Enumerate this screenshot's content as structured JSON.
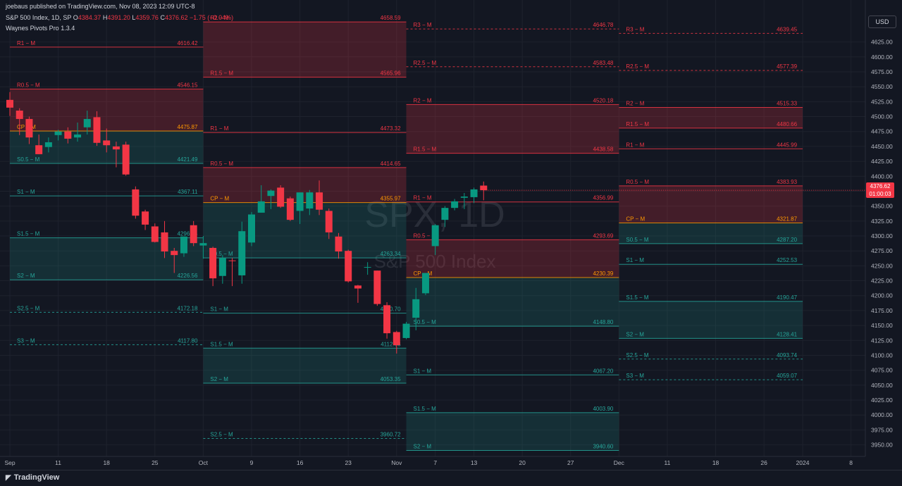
{
  "header": {
    "published": "joebaus published on TradingView.com, Nov 08, 2023 12:09 UTC-8",
    "symbol_line": "S&P 500 Index, 1D, SP",
    "ohlc": {
      "o_label": "O",
      "o": "4384.37",
      "h_label": "H",
      "h": "4391.20",
      "l_label": "L",
      "l": "4359.76",
      "c_label": "C",
      "c": "4376.62",
      "change": "−1.75 (−0.04%)"
    },
    "indicator": "Waynes Pivots Pro 1.3.4"
  },
  "currency_button": "USD",
  "last_price": {
    "price": "4376.62",
    "countdown": "01:00:03",
    "value": 4376.62
  },
  "watermark": {
    "ticker": "SPX, 1D",
    "name": "S&P 500 Index"
  },
  "footer": {
    "brand": "TradingView"
  },
  "colors": {
    "background": "#131722",
    "up": "#089981",
    "down": "#f23645",
    "resist": "#f23645",
    "support": "#26a69a",
    "pivot": "#ff9800",
    "grid": "#1e222d"
  },
  "chart_data": {
    "type": "candlestick",
    "title": "S&P 500 Index, 1D, SP",
    "ylim": [
      3930,
      4675
    ],
    "y_ticks": [
      3950,
      3975,
      4000,
      4025,
      4050,
      4075,
      4100,
      4125,
      4150,
      4175,
      4200,
      4225,
      4250,
      4275,
      4300,
      4325,
      4350,
      4375,
      4400,
      4425,
      4450,
      4475,
      4500,
      4525,
      4550,
      4575,
      4600,
      4625
    ],
    "x_ticks": [
      {
        "label": "Sep",
        "bar": 0
      },
      {
        "label": "11",
        "bar": 5
      },
      {
        "label": "18",
        "bar": 10
      },
      {
        "label": "25",
        "bar": 15
      },
      {
        "label": "Oct",
        "bar": 20
      },
      {
        "label": "9",
        "bar": 25
      },
      {
        "label": "16",
        "bar": 30
      },
      {
        "label": "23",
        "bar": 35
      },
      {
        "label": "Nov",
        "bar": 40
      },
      {
        "label": "7",
        "bar": 44
      },
      {
        "label": "13",
        "bar": 48
      },
      {
        "label": "20",
        "bar": 53
      },
      {
        "label": "27",
        "bar": 58
      },
      {
        "label": "Dec",
        "bar": 63
      },
      {
        "label": "11",
        "bar": 68
      },
      {
        "label": "18",
        "bar": 73
      },
      {
        "label": "26",
        "bar": 78
      },
      {
        "label": "2024",
        "bar": 82
      },
      {
        "label": "8",
        "bar": 87
      }
    ],
    "candles": [
      {
        "o": 4528,
        "h": 4541,
        "l": 4501,
        "c": 4515
      },
      {
        "o": 4510,
        "h": 4514,
        "l": 4469,
        "c": 4496
      },
      {
        "o": 4496,
        "h": 4500,
        "l": 4454,
        "c": 4465
      },
      {
        "o": 4452,
        "h": 4470,
        "l": 4437,
        "c": 4437
      },
      {
        "o": 4449,
        "h": 4465,
        "l": 4440,
        "c": 4457
      },
      {
        "o": 4469,
        "h": 4478,
        "l": 4460,
        "c": 4475
      },
      {
        "o": 4475,
        "h": 4482,
        "l": 4455,
        "c": 4463
      },
      {
        "o": 4465,
        "h": 4490,
        "l": 4458,
        "c": 4470
      },
      {
        "o": 4482,
        "h": 4510,
        "l": 4470,
        "c": 4496
      },
      {
        "o": 4499,
        "h": 4509,
        "l": 4451,
        "c": 4456
      },
      {
        "o": 4460,
        "h": 4480,
        "l": 4440,
        "c": 4452
      },
      {
        "o": 4450,
        "h": 4458,
        "l": 4415,
        "c": 4445
      },
      {
        "o": 4453,
        "h": 4458,
        "l": 4401,
        "c": 4403
      },
      {
        "o": 4378,
        "h": 4383,
        "l": 4329,
        "c": 4334
      },
      {
        "o": 4341,
        "h": 4344,
        "l": 4310,
        "c": 4319
      },
      {
        "o": 4316,
        "h": 4321,
        "l": 4289,
        "c": 4290
      },
      {
        "o": 4306,
        "h": 4325,
        "l": 4263,
        "c": 4274
      },
      {
        "o": 4275,
        "h": 4280,
        "l": 4238,
        "c": 4268
      },
      {
        "o": 4271,
        "h": 4299,
        "l": 4265,
        "c": 4299
      },
      {
        "o": 4318,
        "h": 4325,
        "l": 4283,
        "c": 4288
      },
      {
        "o": 4284,
        "h": 4300,
        "l": 4262,
        "c": 4288
      },
      {
        "o": 4280,
        "h": 4282,
        "l": 4216,
        "c": 4229
      },
      {
        "o": 4233,
        "h": 4268,
        "l": 4220,
        "c": 4263
      },
      {
        "o": 4259,
        "h": 4263,
        "l": 4216,
        "c": 4258
      },
      {
        "o": 4234,
        "h": 4324,
        "l": 4220,
        "c": 4308
      },
      {
        "o": 4289,
        "h": 4340,
        "l": 4283,
        "c": 4336
      },
      {
        "o": 4339,
        "h": 4385,
        "l": 4339,
        "c": 4358
      },
      {
        "o": 4367,
        "h": 4378,
        "l": 4345,
        "c": 4376
      },
      {
        "o": 4381,
        "h": 4385,
        "l": 4347,
        "c": 4349
      },
      {
        "o": 4363,
        "h": 4366,
        "l": 4325,
        "c": 4327
      },
      {
        "o": 4342,
        "h": 4371,
        "l": 4320,
        "c": 4373
      },
      {
        "o": 4346,
        "h": 4377,
        "l": 4335,
        "c": 4373
      },
      {
        "o": 4373,
        "h": 4393,
        "l": 4335,
        "c": 4344
      },
      {
        "o": 4342,
        "h": 4346,
        "l": 4295,
        "c": 4306
      },
      {
        "o": 4299,
        "h": 4305,
        "l": 4262,
        "c": 4274
      },
      {
        "o": 4275,
        "h": 4277,
        "l": 4222,
        "c": 4224
      },
      {
        "o": 4217,
        "h": 4218,
        "l": 4188,
        "c": 4212
      },
      {
        "o": 4247,
        "h": 4256,
        "l": 4235,
        "c": 4248
      },
      {
        "o": 4242,
        "h": 4242,
        "l": 4183,
        "c": 4186
      },
      {
        "o": 4184,
        "h": 4189,
        "l": 4128,
        "c": 4137
      },
      {
        "o": 4139,
        "h": 4141,
        "l": 4103,
        "c": 4117
      },
      {
        "o": 4129,
        "h": 4156,
        "l": 4127,
        "c": 4153
      },
      {
        "o": 4163,
        "h": 4213,
        "l": 4142,
        "c": 4194
      },
      {
        "o": 4204,
        "h": 4238,
        "l": 4201,
        "c": 4238
      },
      {
        "o": 4283,
        "h": 4320,
        "l": 4268,
        "c": 4318
      },
      {
        "o": 4327,
        "h": 4350,
        "l": 4315,
        "c": 4347
      },
      {
        "o": 4347,
        "h": 4362,
        "l": 4343,
        "c": 4358
      },
      {
        "o": 4364,
        "h": 4372,
        "l": 4345,
        "c": 4366
      },
      {
        "o": 4365,
        "h": 4381,
        "l": 4355,
        "c": 4378
      },
      {
        "o": 4384.37,
        "h": 4391.2,
        "l": 4359.76,
        "c": 4376.62
      }
    ],
    "pivot_periods": [
      {
        "period": "Sep",
        "start_bar": 0,
        "end_bar": 20,
        "levels": [
          {
            "label": "R1 − M",
            "value": 4616.42,
            "kind": "r"
          },
          {
            "label": "R0.5 − M",
            "value": 4546.15,
            "kind": "r"
          },
          {
            "label": "CP − M",
            "value": 4475.87,
            "kind": "p"
          },
          {
            "label": "S0.5 − M",
            "value": 4421.49,
            "kind": "s"
          },
          {
            "label": "S1 − M",
            "value": 4367.11,
            "kind": "s"
          },
          {
            "label": "S1.5 − M",
            "value": 4296.84,
            "kind": "s"
          },
          {
            "label": "S2 − M",
            "value": 4226.56,
            "kind": "s"
          },
          {
            "label": "S2.5 − M",
            "value": 4172.18,
            "kind": "sd"
          },
          {
            "label": "S3 − M",
            "value": 4117.8,
            "kind": "sd"
          }
        ],
        "zones": [
          {
            "from": 4475.87,
            "to": 4546.15,
            "kind": "r"
          },
          {
            "from": 4421.49,
            "to": 4475.87,
            "kind": "s"
          },
          {
            "from": 4226.56,
            "to": 4296.84,
            "kind": "s"
          }
        ]
      },
      {
        "period": "Oct",
        "start_bar": 20,
        "end_bar": 41,
        "levels": [
          {
            "label": "R2 − M",
            "value": 4658.59,
            "kind": "r"
          },
          {
            "label": "R1.5 − M",
            "value": 4565.96,
            "kind": "r"
          },
          {
            "label": "R1 − M",
            "value": 4473.32,
            "kind": "r"
          },
          {
            "label": "R0.5 − M",
            "value": 4414.65,
            "kind": "r"
          },
          {
            "label": "CP − M",
            "value": 4355.97,
            "kind": "p"
          },
          {
            "label": "S0.5 − M",
            "value": 4263.34,
            "kind": "s"
          },
          {
            "label": "S1 − M",
            "value": 4170.7,
            "kind": "s"
          },
          {
            "label": "S1.5 − M",
            "value": 4112.03,
            "kind": "s"
          },
          {
            "label": "S2 − M",
            "value": 4053.35,
            "kind": "s"
          },
          {
            "label": "S2.5 − M",
            "value": 3960.72,
            "kind": "sd"
          }
        ],
        "zones": [
          {
            "from": 4565.96,
            "to": 4658.59,
            "kind": "r"
          },
          {
            "from": 4355.97,
            "to": 4414.65,
            "kind": "r"
          },
          {
            "from": 4263.34,
            "to": 4355.97,
            "kind": "s"
          },
          {
            "from": 4053.35,
            "to": 4112.03,
            "kind": "s"
          }
        ]
      },
      {
        "period": "Nov",
        "start_bar": 41,
        "end_bar": 63,
        "levels": [
          {
            "label": "R3 − M",
            "value": 4646.78,
            "kind": "rd"
          },
          {
            "label": "R2.5 − M",
            "value": 4583.48,
            "kind": "rd"
          },
          {
            "label": "R2 − M",
            "value": 4520.18,
            "kind": "r"
          },
          {
            "label": "R1.5 − M",
            "value": 4438.58,
            "kind": "r"
          },
          {
            "label": "R1 − M",
            "value": 4356.99,
            "kind": "r"
          },
          {
            "label": "R0.5 − M",
            "value": 4293.69,
            "kind": "r"
          },
          {
            "label": "CP − M",
            "value": 4230.39,
            "kind": "p"
          },
          {
            "label": "S0.5 − M",
            "value": 4148.8,
            "kind": "s"
          },
          {
            "label": "S1 − M",
            "value": 4067.2,
            "kind": "s"
          },
          {
            "label": "S1.5 − M",
            "value": 4003.9,
            "kind": "s"
          },
          {
            "label": "S2 − M",
            "value": 3940.6,
            "kind": "s"
          }
        ],
        "zones": [
          {
            "from": 4438.58,
            "to": 4520.18,
            "kind": "r"
          },
          {
            "from": 4230.39,
            "to": 4293.69,
            "kind": "r"
          },
          {
            "from": 4148.8,
            "to": 4230.39,
            "kind": "s"
          },
          {
            "from": 3940.6,
            "to": 4003.9,
            "kind": "s"
          }
        ]
      },
      {
        "period": "Dec",
        "start_bar": 63,
        "end_bar": 82,
        "levels": [
          {
            "label": "R3 − M",
            "value": 4639.45,
            "kind": "rd"
          },
          {
            "label": "R2.5 − M",
            "value": 4577.39,
            "kind": "rd"
          },
          {
            "label": "R2 − M",
            "value": 4515.33,
            "kind": "r"
          },
          {
            "label": "R1.5 − M",
            "value": 4480.66,
            "kind": "r"
          },
          {
            "label": "R1 − M",
            "value": 4445.99,
            "kind": "r"
          },
          {
            "label": "R0.5 − M",
            "value": 4383.93,
            "kind": "r"
          },
          {
            "label": "CP − M",
            "value": 4321.87,
            "kind": "p"
          },
          {
            "label": "S0.5 − M",
            "value": 4287.2,
            "kind": "s"
          },
          {
            "label": "S1 − M",
            "value": 4252.53,
            "kind": "s"
          },
          {
            "label": "S1.5 − M",
            "value": 4190.47,
            "kind": "s"
          },
          {
            "label": "S2 − M",
            "value": 4128.41,
            "kind": "s"
          },
          {
            "label": "S2.5 − M",
            "value": 4093.74,
            "kind": "sd"
          },
          {
            "label": "S3 − M",
            "value": 4059.07,
            "kind": "sd"
          }
        ],
        "zones": [
          {
            "from": 4480.66,
            "to": 4515.33,
            "kind": "r"
          },
          {
            "from": 4321.87,
            "to": 4383.93,
            "kind": "r"
          },
          {
            "from": 4287.2,
            "to": 4321.87,
            "kind": "s"
          },
          {
            "from": 4128.41,
            "to": 4190.47,
            "kind": "s"
          }
        ]
      }
    ]
  }
}
